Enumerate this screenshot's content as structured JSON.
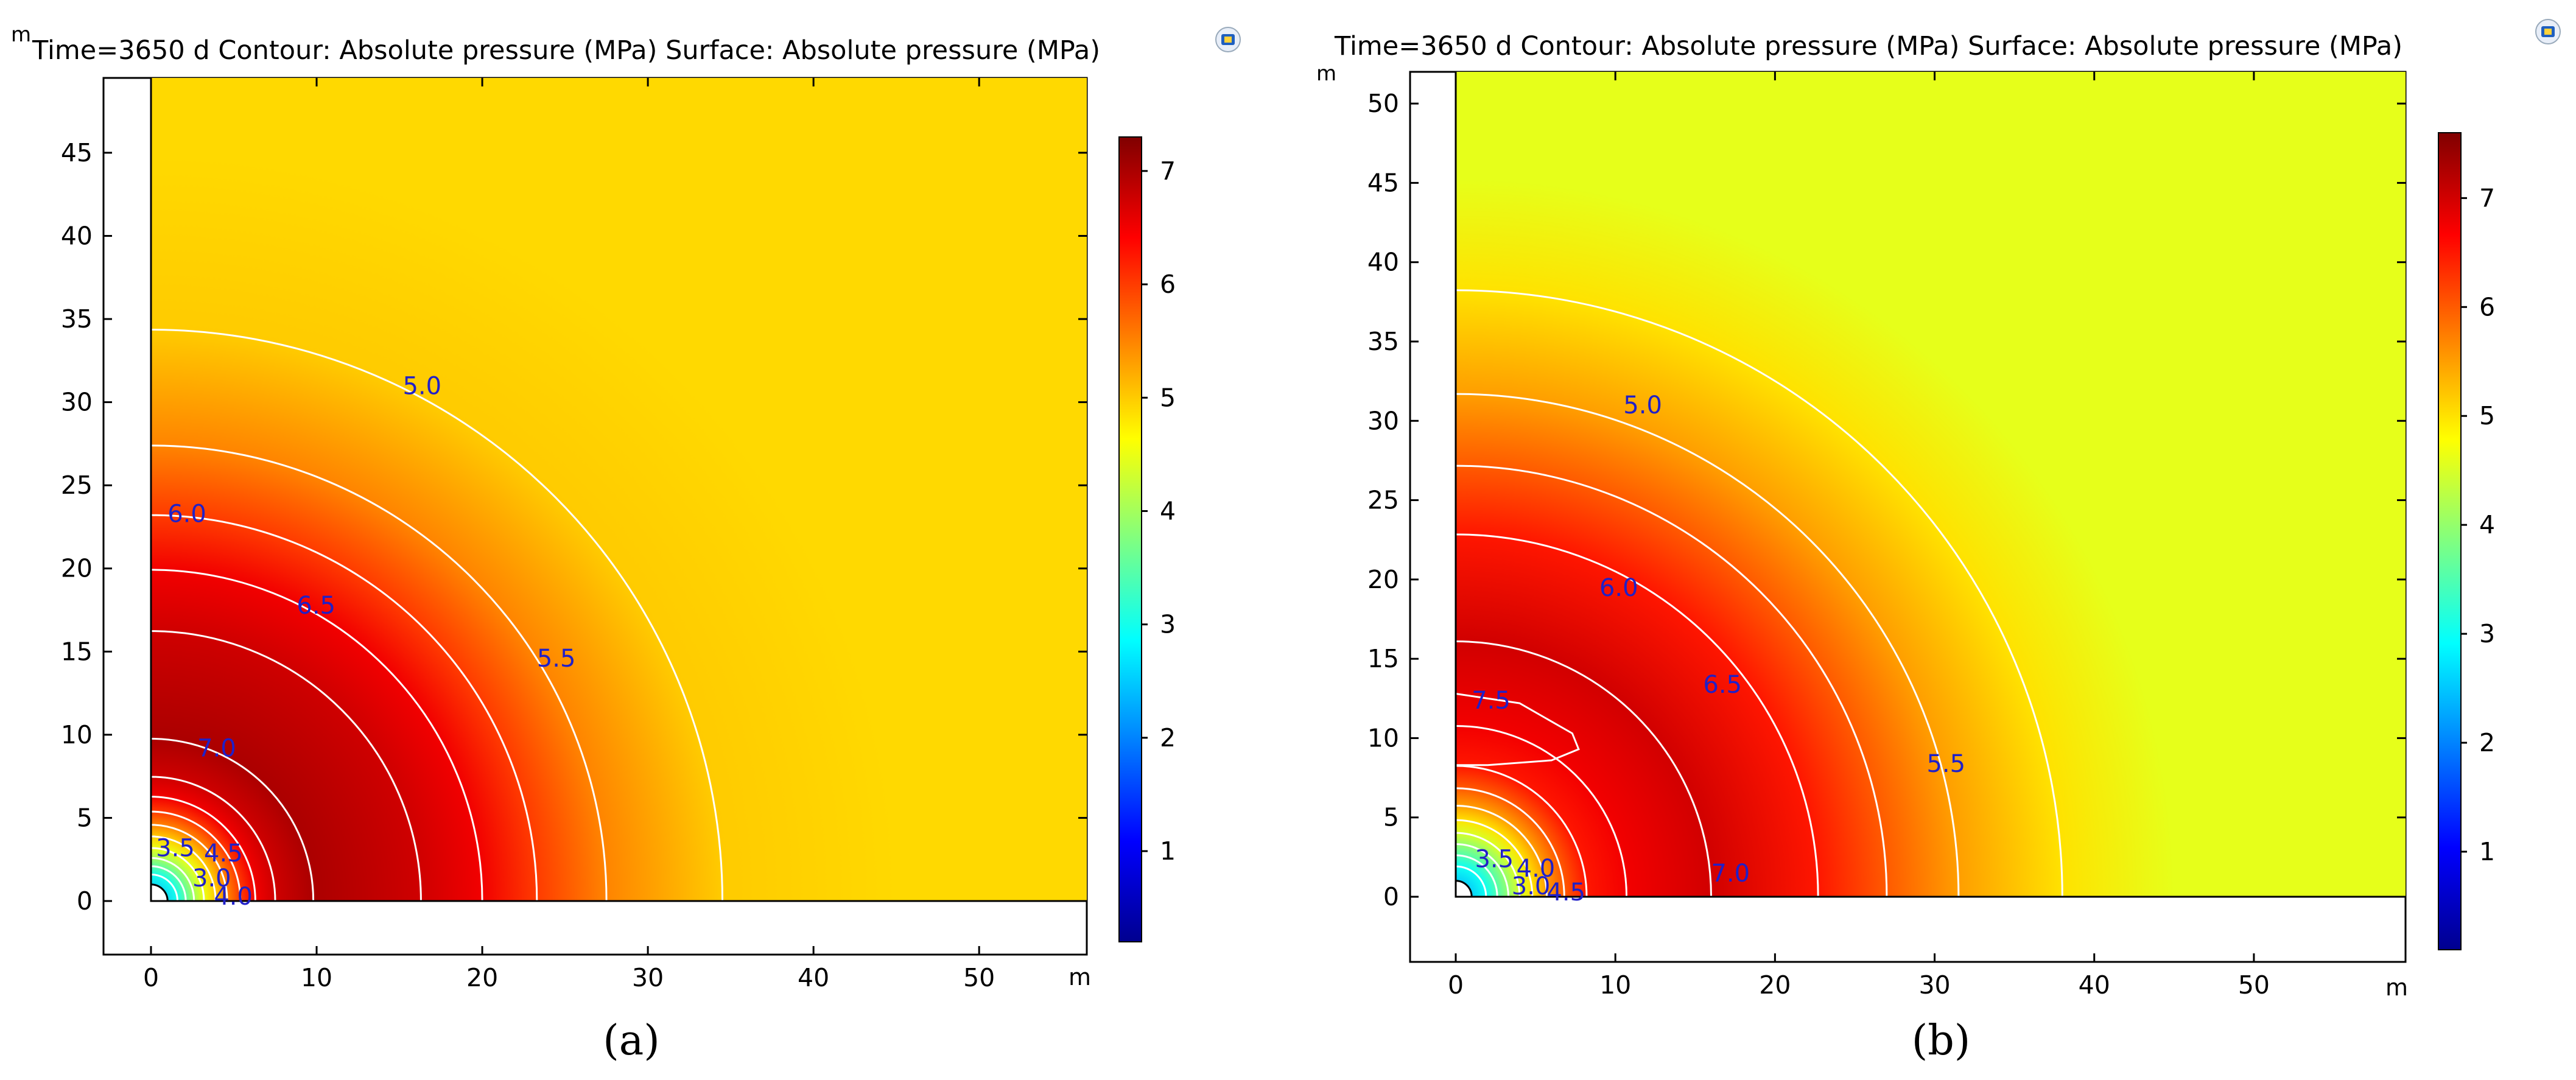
{
  "figure": {
    "panel_captions": [
      "(a)",
      "(b)"
    ]
  },
  "colors": {
    "background": "#ffffff",
    "contour_line": "#ffffff",
    "contour_label": "#2020c8",
    "axis": "#000000",
    "colormap": [
      "#00008f",
      "#0000ff",
      "#0080ff",
      "#00ffff",
      "#80ff80",
      "#ffff00",
      "#ff8000",
      "#ff0000",
      "#800000"
    ]
  },
  "chart_data": [
    {
      "type": "heatmap",
      "panel": "(a)",
      "title": "Time=3650 d  Contour: Absolute pressure (MPa)  Surface: Absolute pressure (MPa)",
      "xlabel": "m",
      "ylabel": "m",
      "xlim": [
        -3,
        56.5
      ],
      "ylim": [
        -3,
        49.5
      ],
      "domain_x": [
        0,
        56.5
      ],
      "domain_y": [
        0,
        49.5
      ],
      "xticks": [
        0,
        10,
        20,
        30,
        40,
        50
      ],
      "yticks": [
        0,
        5,
        10,
        15,
        20,
        25,
        30,
        35,
        40,
        45
      ],
      "well_radius": 1,
      "colorbar": {
        "min": 0.2,
        "max": 7.3,
        "ticks": [
          1,
          2,
          3,
          4,
          5,
          6,
          7
        ]
      },
      "far_field_pressure": 4.9,
      "contour_labels": [
        {
          "text": "5.0",
          "x": 15.2,
          "y": 31
        },
        {
          "text": "6.0",
          "x": 1,
          "y": 23.3
        },
        {
          "text": "6.5",
          "x": 8.8,
          "y": 17.8
        },
        {
          "text": "5.5",
          "x": 23.3,
          "y": 14.6
        },
        {
          "text": "7.0",
          "x": 2.8,
          "y": 9.2
        },
        {
          "text": "3.5",
          "x": 0.3,
          "y": 3.2
        },
        {
          "text": "4.5",
          "x": 3.2,
          "y": 2.9
        },
        {
          "text": "3.0",
          "x": 2.5,
          "y": 1.4
        },
        {
          "text": "4.0",
          "x": 3.8,
          "y": 0.3
        }
      ],
      "contour_radii": [
        {
          "level": 5.0,
          "r": 34.5
        },
        {
          "level": 5.5,
          "r": 27.5
        },
        {
          "level": 6.0,
          "r": 23.3
        },
        {
          "level": 6.5,
          "r": 20
        },
        {
          "level": 6.75,
          "r": 16.3
        },
        {
          "level": 7.0,
          "r": 9.8
        },
        {
          "level": 6.75,
          "r": 7.5
        },
        {
          "level": 6.5,
          "r": 6.3
        },
        {
          "level": 6.0,
          "r": 5.4
        },
        {
          "level": 5.5,
          "r": 4.6
        },
        {
          "level": 5.0,
          "r": 3.9
        },
        {
          "level": 4.5,
          "r": 3.2
        },
        {
          "level": 4.0,
          "r": 2.6
        },
        {
          "level": 3.5,
          "r": 2.1
        },
        {
          "level": 3.0,
          "r": 1.6
        }
      ]
    },
    {
      "type": "heatmap",
      "panel": "(b)",
      "title": "Time=3650 d  Contour: Absolute pressure (MPa)  Surface: Absolute pressure (MPa)",
      "xlabel": "m",
      "ylabel": "m",
      "xlim": [
        -3,
        59.5
      ],
      "ylim": [
        -3.8,
        52
      ],
      "domain_x": [
        0,
        59.5
      ],
      "domain_y": [
        0,
        52
      ],
      "xticks": [
        0,
        10,
        20,
        30,
        40,
        50
      ],
      "yticks": [
        0,
        5,
        10,
        15,
        20,
        25,
        30,
        35,
        40,
        45,
        50
      ],
      "well_radius": 1,
      "colorbar": {
        "min": 0.1,
        "max": 7.6,
        "ticks": [
          1,
          2,
          3,
          4,
          5,
          6,
          7
        ]
      },
      "far_field_pressure": 4.6,
      "contour_labels": [
        {
          "text": "5.0",
          "x": 10.5,
          "y": 31
        },
        {
          "text": "6.0",
          "x": 9,
          "y": 19.5
        },
        {
          "text": "7.5",
          "x": 1,
          "y": 12.4
        },
        {
          "text": "6.5",
          "x": 15.5,
          "y": 13.4
        },
        {
          "text": "5.5",
          "x": 29.5,
          "y": 8.4
        },
        {
          "text": "7.0",
          "x": 16,
          "y": 1.5
        },
        {
          "text": "3.5",
          "x": 1.2,
          "y": 2.4
        },
        {
          "text": "4.0",
          "x": 3.8,
          "y": 1.8
        },
        {
          "text": "3.0",
          "x": 3.5,
          "y": 0.7
        },
        {
          "text": "4.5",
          "x": 5.7,
          "y": 0.3
        }
      ],
      "contour_radii": [
        {
          "level": 5.0,
          "r": 38
        },
        {
          "level": 5.5,
          "r": 31.5
        },
        {
          "level": 6.0,
          "r": 27
        },
        {
          "level": 6.5,
          "r": 22.7
        },
        {
          "level": 7.0,
          "r": 16
        },
        {
          "level": 6.75,
          "r": 10.7
        },
        {
          "level": 6.5,
          "r": 8.2
        },
        {
          "level": 6.0,
          "r": 6.8
        },
        {
          "level": 5.5,
          "r": 5.7
        },
        {
          "level": 5.0,
          "r": 4.8
        },
        {
          "level": 4.5,
          "r": 4
        },
        {
          "level": 4.0,
          "r": 3.3
        },
        {
          "level": 3.5,
          "r": 2.6
        },
        {
          "level": 3.0,
          "r": 1.9
        }
      ]
    }
  ]
}
